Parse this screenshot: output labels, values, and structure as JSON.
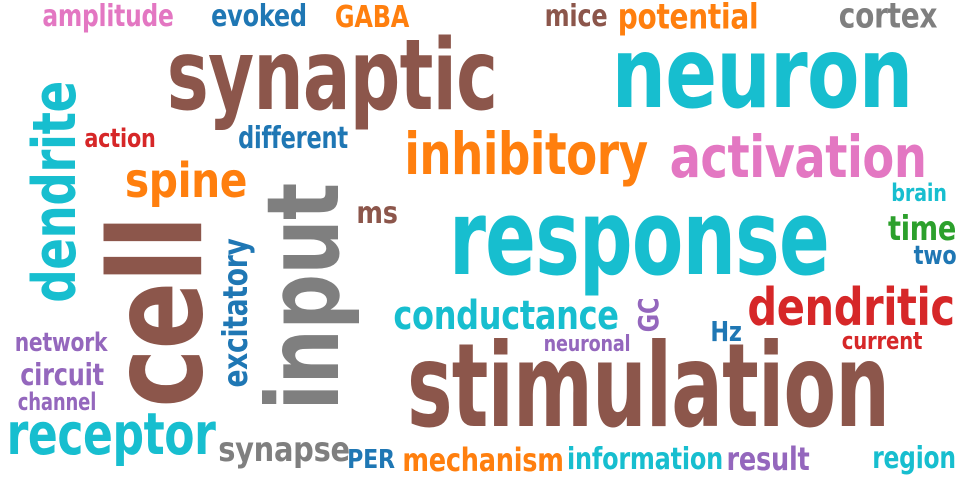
{
  "colors": {
    "brown": "#8c564b",
    "cyan": "#17becf",
    "orange": "#ff7f0e",
    "pink": "#e377c2",
    "blue": "#1f77b4",
    "gray": "#7f7f7f",
    "red": "#d62728",
    "purple": "#9467bd",
    "green": "#2ca02c"
  },
  "words": [
    {
      "text": "amplitude",
      "color": "pink",
      "orientation": "horizontal"
    },
    {
      "text": "evoked",
      "color": "blue",
      "orientation": "horizontal"
    },
    {
      "text": "GABA",
      "color": "orange",
      "orientation": "horizontal"
    },
    {
      "text": "mice",
      "color": "brown",
      "orientation": "horizontal"
    },
    {
      "text": "potential",
      "color": "orange",
      "orientation": "horizontal"
    },
    {
      "text": "cortex",
      "color": "gray",
      "orientation": "horizontal"
    },
    {
      "text": "synaptic",
      "color": "brown",
      "orientation": "horizontal"
    },
    {
      "text": "neuron",
      "color": "cyan",
      "orientation": "horizontal"
    },
    {
      "text": "dendrite",
      "color": "cyan",
      "orientation": "vertical"
    },
    {
      "text": "action",
      "color": "red",
      "orientation": "horizontal"
    },
    {
      "text": "different",
      "color": "blue",
      "orientation": "horizontal"
    },
    {
      "text": "inhibitory",
      "color": "orange",
      "orientation": "horizontal"
    },
    {
      "text": "activation",
      "color": "pink",
      "orientation": "horizontal"
    },
    {
      "text": "spine",
      "color": "orange",
      "orientation": "horizontal"
    },
    {
      "text": "input",
      "color": "gray",
      "orientation": "vertical"
    },
    {
      "text": "brain",
      "color": "cyan",
      "orientation": "horizontal"
    },
    {
      "text": "ms",
      "color": "brown",
      "orientation": "horizontal"
    },
    {
      "text": "response",
      "color": "cyan",
      "orientation": "horizontal"
    },
    {
      "text": "time",
      "color": "green",
      "orientation": "horizontal"
    },
    {
      "text": "two",
      "color": "blue",
      "orientation": "horizontal"
    },
    {
      "text": "excitatory",
      "color": "blue",
      "orientation": "vertical"
    },
    {
      "text": "cell",
      "color": "brown",
      "orientation": "vertical"
    },
    {
      "text": "dendritic",
      "color": "red",
      "orientation": "horizontal"
    },
    {
      "text": "conductance",
      "color": "cyan",
      "orientation": "horizontal"
    },
    {
      "text": "GC",
      "color": "purple",
      "orientation": "vertical"
    },
    {
      "text": "Hz",
      "color": "blue",
      "orientation": "horizontal"
    },
    {
      "text": "network",
      "color": "purple",
      "orientation": "horizontal"
    },
    {
      "text": "neuronal",
      "color": "purple",
      "orientation": "horizontal"
    },
    {
      "text": "current",
      "color": "red",
      "orientation": "horizontal"
    },
    {
      "text": "circuit",
      "color": "purple",
      "orientation": "horizontal"
    },
    {
      "text": "channel",
      "color": "purple",
      "orientation": "horizontal"
    },
    {
      "text": "stimulation",
      "color": "brown",
      "orientation": "horizontal"
    },
    {
      "text": "receptor",
      "color": "cyan",
      "orientation": "horizontal"
    },
    {
      "text": "synapse",
      "color": "gray",
      "orientation": "horizontal"
    },
    {
      "text": "PER",
      "color": "blue",
      "orientation": "horizontal"
    },
    {
      "text": "mechanism",
      "color": "orange",
      "orientation": "horizontal"
    },
    {
      "text": "information",
      "color": "cyan",
      "orientation": "horizontal"
    },
    {
      "text": "result",
      "color": "purple",
      "orientation": "horizontal"
    },
    {
      "text": "region",
      "color": "cyan",
      "orientation": "horizontal"
    }
  ]
}
